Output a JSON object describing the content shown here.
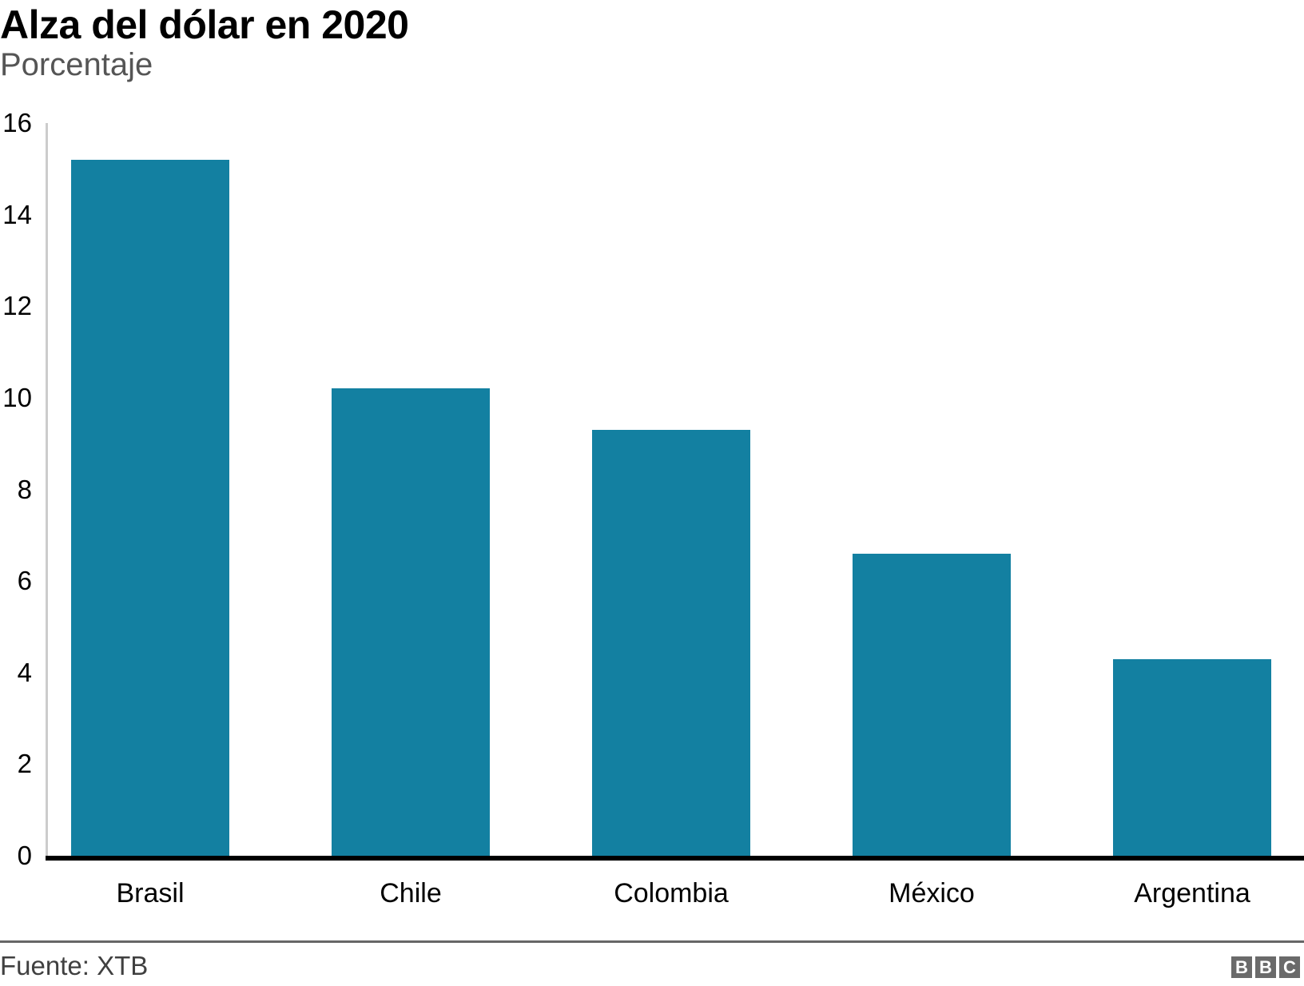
{
  "header": {
    "title": "Alza del dólar en 2020",
    "subtitle": "Porcentaje"
  },
  "chart_data": {
    "type": "bar",
    "categories": [
      "Brasil",
      "Chile",
      "Colombia",
      "México",
      "Argentina"
    ],
    "values": [
      15.2,
      10.2,
      9.3,
      6.6,
      4.3
    ],
    "title": "Alza del dólar en 2020",
    "subtitle": "Porcentaje",
    "xlabel": "",
    "ylabel": "Porcentaje",
    "ylim": [
      0,
      16
    ],
    "yticks": [
      0,
      2,
      4,
      6,
      8,
      10,
      12,
      14,
      16
    ],
    "grid": false,
    "legend": false,
    "bar_color": "#1380A1"
  },
  "footer": {
    "source_label": "Fuente: XTB",
    "logo_letters": [
      "B",
      "B",
      "C"
    ]
  },
  "colors": {
    "bar": "#1380A1",
    "title_text": "#000000",
    "subtitle_text": "#555555",
    "axis_line": "#cccccc",
    "baseline": "#000000",
    "divider": "#666666",
    "source_text": "#404040",
    "logo_block": "#6a6a6a"
  }
}
